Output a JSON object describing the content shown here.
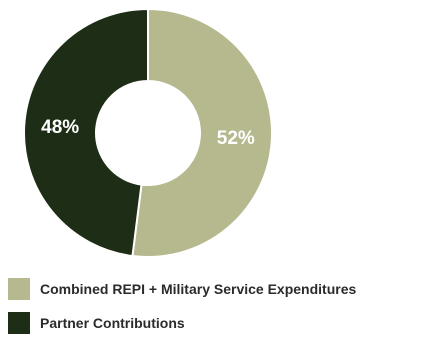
{
  "chart_data": {
    "type": "pie",
    "style": "donut",
    "categories": [
      "Combined REPI + Military Service Expenditures",
      "Partner Contributions"
    ],
    "values": [
      52,
      48
    ],
    "labels": [
      "52%",
      "48%"
    ],
    "colors": [
      "#b5b98d",
      "#1e2e16"
    ],
    "legend": "bottom-left"
  }
}
